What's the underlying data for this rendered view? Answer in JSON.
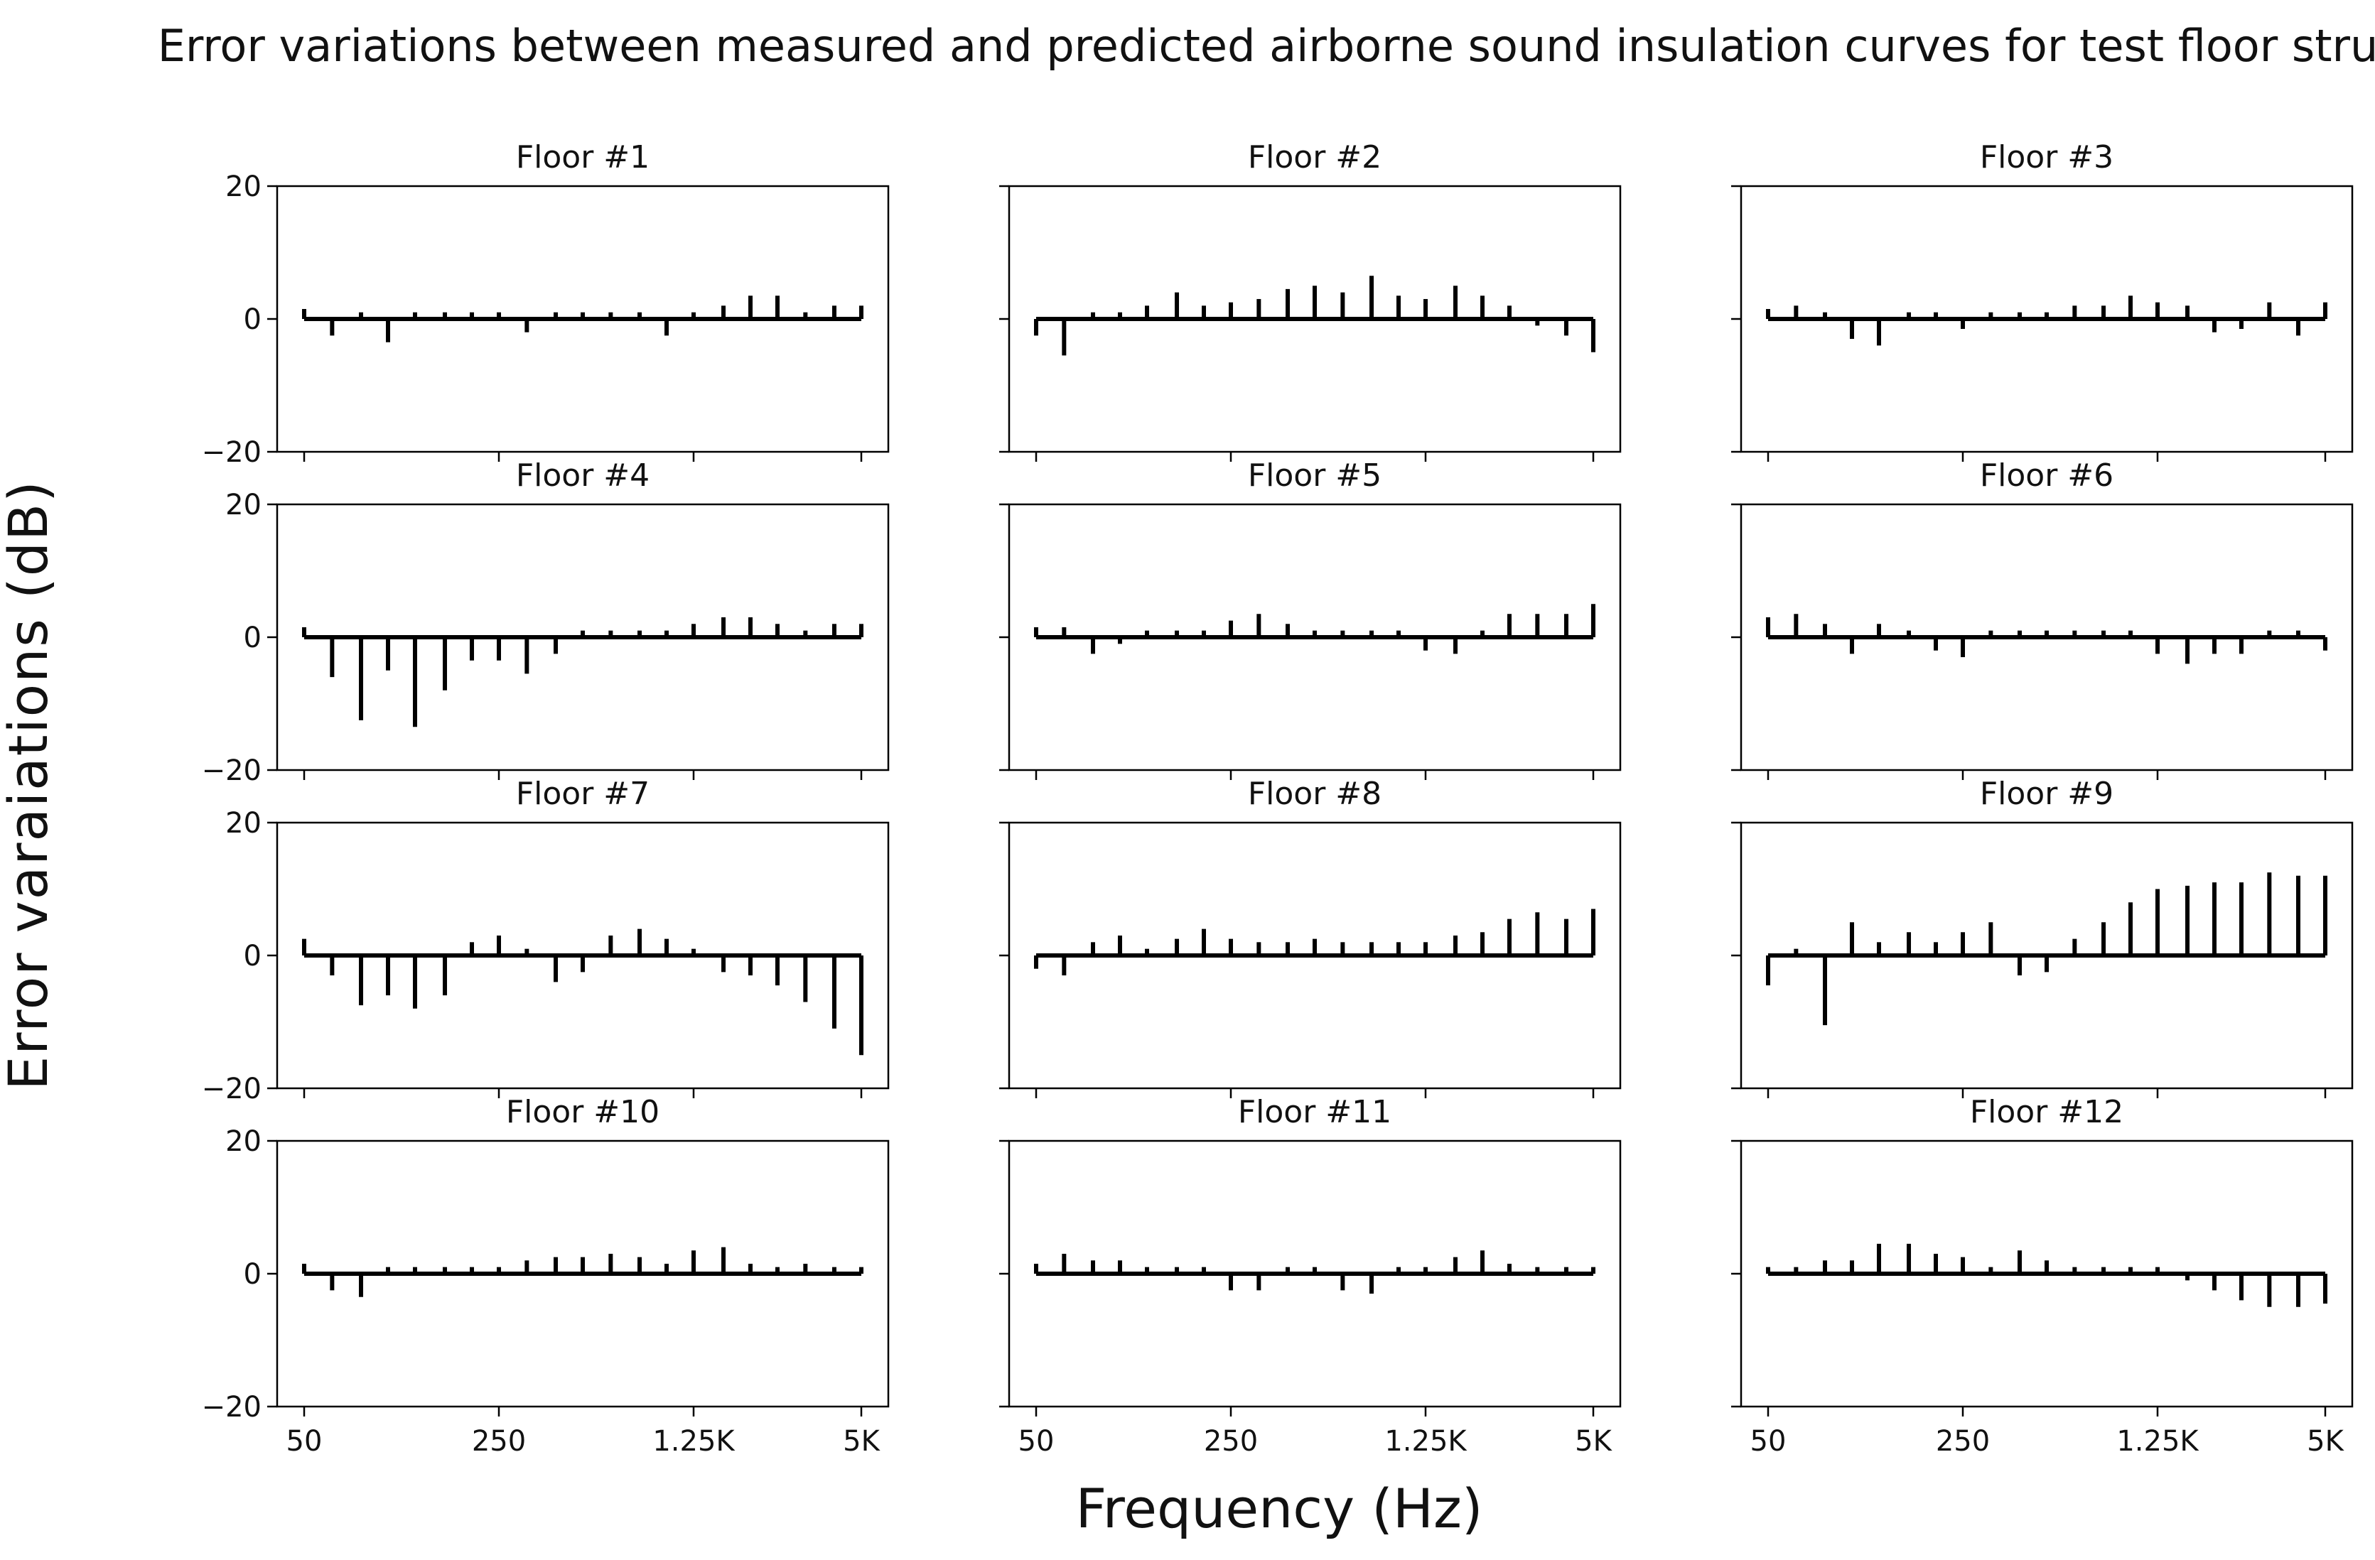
{
  "chart_data": {
    "type": "bar",
    "title": "Error variations between measured and predicted airborne sound insulation curves for test floor structures.",
    "xlabel": "Frequency (Hz)",
    "ylabel": "Error varaiations (dB)",
    "ylim": [
      -20,
      20
    ],
    "yticks": [
      -20,
      0,
      20
    ],
    "ytick_labels": [
      "−20",
      "0",
      "20"
    ],
    "x": [
      50,
      63,
      80,
      100,
      125,
      160,
      200,
      250,
      315,
      400,
      500,
      630,
      800,
      1000,
      1250,
      1600,
      2000,
      2500,
      3150,
      4000,
      5000
    ],
    "xtick_labels": [
      {
        "at": 50,
        "label": "50"
      },
      {
        "at": 250,
        "label": "250"
      },
      {
        "at": 1250,
        "label": "1.25K"
      },
      {
        "at": 5000,
        "label": "5K"
      }
    ],
    "grid": false,
    "layout": {
      "rows": 4,
      "cols": 3
    },
    "series": [
      {
        "name": "Floor #1",
        "values": [
          1.5,
          -2.5,
          1,
          -3.5,
          1,
          1,
          1,
          1,
          -2,
          1,
          1,
          1,
          1,
          -2.5,
          1,
          2,
          3.5,
          3.5,
          1,
          2,
          2
        ]
      },
      {
        "name": "Floor #2",
        "values": [
          -2.5,
          -5.5,
          1,
          1,
          2,
          4,
          2,
          2.5,
          3,
          4.5,
          5,
          4,
          6.5,
          3.5,
          3,
          5,
          3.5,
          2,
          -1,
          -2.5,
          -5
        ]
      },
      {
        "name": "Floor #3",
        "values": [
          1.5,
          2,
          1,
          -3,
          -4,
          1,
          1,
          -1.5,
          1,
          1,
          1,
          2,
          2,
          3.5,
          2.5,
          2,
          -2,
          -1.5,
          2.5,
          -2.5,
          2.5
        ]
      },
      {
        "name": "Floor #4",
        "values": [
          1.5,
          -6,
          -12.5,
          -5,
          -13.5,
          -8,
          -3.5,
          -3.5,
          -5.5,
          -2.5,
          1,
          1,
          1,
          1,
          2,
          3,
          3,
          2,
          1,
          2,
          2
        ]
      },
      {
        "name": "Floor #5",
        "values": [
          1.5,
          1.5,
          -2.5,
          -1,
          1,
          1,
          1,
          2.5,
          3.5,
          2,
          1,
          1,
          1,
          1,
          -2,
          -2.5,
          1,
          3.5,
          3.5,
          3.5,
          5
        ]
      },
      {
        "name": "Floor #6",
        "values": [
          3,
          3.5,
          2,
          -2.5,
          2,
          1,
          -2,
          -3,
          1,
          1,
          1,
          1,
          1,
          1,
          -2.5,
          -4,
          -2.5,
          -2.5,
          1,
          1,
          -2
        ]
      },
      {
        "name": "Floor #7",
        "values": [
          2.5,
          -3,
          -7.5,
          -6,
          -8,
          -6,
          2,
          3,
          1,
          -4,
          -2.5,
          3,
          4,
          2.5,
          1,
          -2.5,
          -3,
          -4.5,
          -7,
          -11,
          -15
        ]
      },
      {
        "name": "Floor #8",
        "values": [
          -2,
          -3,
          2,
          3,
          1,
          2.5,
          4,
          2.5,
          2,
          2,
          2.5,
          2,
          2,
          2,
          2,
          3,
          3.5,
          5.5,
          6.5,
          5.5,
          7
        ]
      },
      {
        "name": "Floor #9",
        "values": [
          -4.5,
          1,
          -10.5,
          5,
          2,
          3.5,
          2,
          3.5,
          5,
          -3,
          -2.5,
          2.5,
          5,
          8,
          10,
          10.5,
          11,
          11,
          12.5,
          12,
          12
        ]
      },
      {
        "name": "Floor #10",
        "values": [
          1.5,
          -2.5,
          -3.5,
          1,
          1,
          1,
          1,
          1,
          2,
          2.5,
          2.5,
          3,
          2.5,
          1.5,
          3.5,
          4,
          1.5,
          1,
          1.5,
          1,
          1
        ]
      },
      {
        "name": "Floor #11",
        "values": [
          1.5,
          3,
          2,
          2,
          1,
          1,
          1,
          -2.5,
          -2.5,
          1,
          1,
          -2.5,
          -3,
          1,
          1,
          2.5,
          3.5,
          1.5,
          1,
          1,
          1
        ]
      },
      {
        "name": "Floor #12",
        "values": [
          1,
          1,
          2,
          2,
          4.5,
          4.5,
          3,
          2.5,
          1,
          3.5,
          2,
          1,
          1,
          1,
          1,
          -1,
          -2.5,
          -4,
          -5,
          -5,
          -4.5
        ]
      }
    ]
  }
}
